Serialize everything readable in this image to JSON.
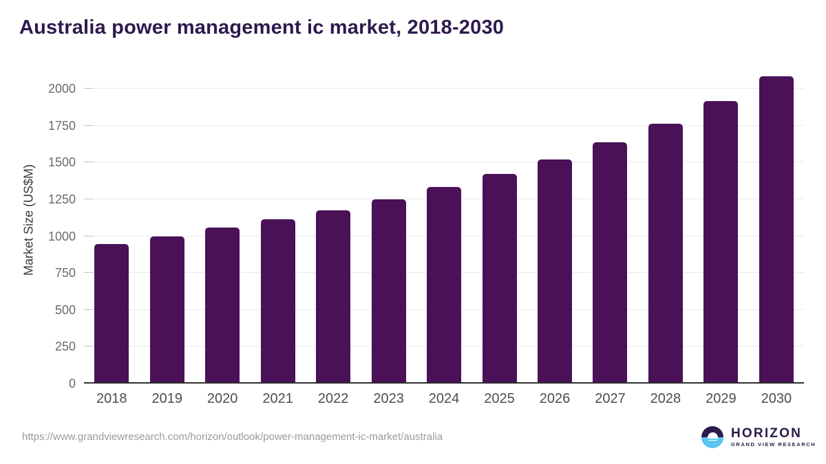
{
  "title": "Australia power management ic market, 2018-2030",
  "chart_data": {
    "type": "bar",
    "title": "Australia power management ic market, 2018-2030",
    "categories": [
      "2018",
      "2019",
      "2020",
      "2021",
      "2022",
      "2023",
      "2024",
      "2025",
      "2026",
      "2027",
      "2028",
      "2029",
      "2030"
    ],
    "values": [
      945,
      1000,
      1060,
      1115,
      1175,
      1250,
      1335,
      1420,
      1520,
      1635,
      1765,
      1915,
      2085
    ],
    "xlabel": "",
    "ylabel": "Market Size (US$M)",
    "ylim": [
      0,
      2145
    ],
    "yticks": [
      0,
      250,
      500,
      750,
      1000,
      1250,
      1500,
      1750,
      2000
    ],
    "grid": true,
    "legend": "none",
    "bar_color": "#4a1158"
  },
  "colors": {
    "bar": "#4a1158",
    "title_text": "#2e1a4e",
    "gridline": "#e9e9e9",
    "axis_line": "#2f2f2f",
    "ytick_label": "#6b6b6b",
    "xtick_label": "#4d4d4d",
    "url_text": "#9a9a9a",
    "logo_purple": "#2b1a4a",
    "logo_blue": "#5cc6ee"
  },
  "footer": {
    "source_url": "https://www.grandviewresearch.com/horizon/outlook/power-management-ic-market/australia",
    "logo": {
      "brand": "HORIZON",
      "subtitle": "GRAND VIEW RESEARCH",
      "sun_icon": "sun-over-water-icon"
    }
  }
}
